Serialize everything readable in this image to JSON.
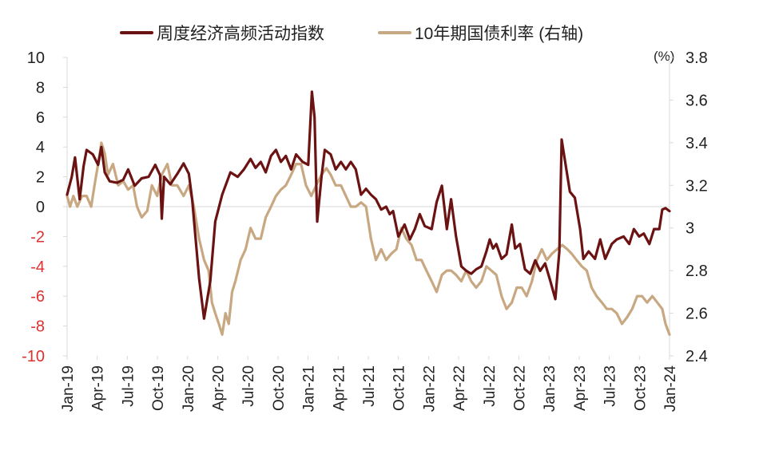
{
  "chart_data": {
    "type": "line",
    "legend": [
      {
        "label": "周度经济高频活动指数",
        "color": "#6b1212",
        "axis": "left"
      },
      {
        "label": "10年期国债利率 (右轴)",
        "color": "#c8a882",
        "axis": "right"
      }
    ],
    "legend_position": "top-center",
    "grid": false,
    "x_labels": [
      "Jan-19",
      "Apr-19",
      "Jul-19",
      "Oct-19",
      "Jan-20",
      "Apr-20",
      "Jul-20",
      "Oct-20",
      "Jan-21",
      "Apr-21",
      "Jul-21",
      "Oct-21",
      "Jan-22",
      "Apr-22",
      "Jul-22",
      "Oct-22",
      "Jan-23",
      "Apr-23",
      "Jul-23",
      "Oct-23",
      "Jan-24"
    ],
    "x_range": [
      "2019-01",
      "2024-01"
    ],
    "y_left": {
      "ylim": [
        -10,
        10
      ],
      "ticks": [
        "10",
        "8",
        "6",
        "4",
        "2",
        "0",
        "-2",
        "-4",
        "-6",
        "-8",
        "-10"
      ],
      "negative_label_color": "#e03030"
    },
    "y_right": {
      "ylim": [
        2.4,
        3.8
      ],
      "unit": "(%)",
      "ticks": [
        "3.8",
        "3.6",
        "3.4",
        "3.2",
        "3",
        "2.8",
        "2.6",
        "2.4"
      ]
    },
    "series": [
      {
        "name": "周度经济高频活动指数",
        "color": "#6b1212",
        "axis": "left",
        "points": [
          [
            "2019-01",
            0.8
          ],
          [
            "2019-01-15",
            2
          ],
          [
            "2019-01-25",
            3.3
          ],
          [
            "2019-02-08",
            0.5
          ],
          [
            "2019-02-20",
            2.7
          ],
          [
            "2019-03-01",
            3.8
          ],
          [
            "2019-03-20",
            3.5
          ],
          [
            "2019-04-05",
            2.8
          ],
          [
            "2019-04-15",
            4
          ],
          [
            "2019-04-25",
            2.3
          ],
          [
            "2019-05-10",
            1.7
          ],
          [
            "2019-06-01",
            1.6
          ],
          [
            "2019-06-20",
            1.8
          ],
          [
            "2019-07-05",
            2.5
          ],
          [
            "2019-07-25",
            1.4
          ],
          [
            "2019-08-15",
            1.9
          ],
          [
            "2019-09-05",
            2
          ],
          [
            "2019-09-25",
            2.8
          ],
          [
            "2019-10-10",
            2.1
          ],
          [
            "2019-10-15",
            -0.8
          ],
          [
            "2019-10-22",
            2
          ],
          [
            "2019-11-10",
            1.5
          ],
          [
            "2019-12-01",
            2.2
          ],
          [
            "2019-12-20",
            2.9
          ],
          [
            "2020-01-05",
            2.2
          ],
          [
            "2020-01-15",
            0.5
          ],
          [
            "2020-02-05",
            -4.8
          ],
          [
            "2020-02-20",
            -7.5
          ],
          [
            "2020-03-10",
            -5
          ],
          [
            "2020-03-25",
            -1
          ],
          [
            "2020-04-15",
            0.8
          ],
          [
            "2020-05-10",
            2.3
          ],
          [
            "2020-06-01",
            2
          ],
          [
            "2020-06-20",
            2.5
          ],
          [
            "2020-07-10",
            3.2
          ],
          [
            "2020-07-25",
            2.6
          ],
          [
            "2020-08-10",
            3
          ],
          [
            "2020-08-25",
            2.3
          ],
          [
            "2020-09-10",
            3.4
          ],
          [
            "2020-09-25",
            3.8
          ],
          [
            "2020-10-10",
            3
          ],
          [
            "2020-10-25",
            3.4
          ],
          [
            "2020-11-10",
            2.5
          ],
          [
            "2020-11-25",
            3.5
          ],
          [
            "2020-12-15",
            3
          ],
          [
            "2021-01-01",
            2.8
          ],
          [
            "2021-01-12",
            7.7
          ],
          [
            "2021-01-20",
            6
          ],
          [
            "2021-01-28",
            -1
          ],
          [
            "2021-02-10",
            2
          ],
          [
            "2021-02-20",
            3.8
          ],
          [
            "2021-03-10",
            3.5
          ],
          [
            "2021-03-25",
            2.5
          ],
          [
            "2021-04-10",
            3
          ],
          [
            "2021-04-25",
            2.5
          ],
          [
            "2021-05-10",
            3
          ],
          [
            "2021-05-25",
            2.5
          ],
          [
            "2021-06-10",
            0.8
          ],
          [
            "2021-06-25",
            1.2
          ],
          [
            "2021-07-10",
            0.8
          ],
          [
            "2021-07-25",
            0.5
          ],
          [
            "2021-08-10",
            -0.2
          ],
          [
            "2021-08-25",
            0
          ],
          [
            "2021-09-05",
            -0.5
          ],
          [
            "2021-09-15",
            -0.3
          ],
          [
            "2021-10-01",
            -2
          ],
          [
            "2021-10-20",
            -1.2
          ],
          [
            "2021-11-05",
            -2.2
          ],
          [
            "2021-11-20",
            -1.5
          ],
          [
            "2021-12-05",
            -0.5
          ],
          [
            "2021-12-20",
            -1.3
          ],
          [
            "2022-01-10",
            -1.5
          ],
          [
            "2022-01-25",
            0.3
          ],
          [
            "2022-02-10",
            1.4
          ],
          [
            "2022-02-25",
            -1.5
          ],
          [
            "2022-03-10",
            0.5
          ],
          [
            "2022-03-25",
            -2
          ],
          [
            "2022-04-10",
            -4
          ],
          [
            "2022-04-25",
            -4.3
          ],
          [
            "2022-05-10",
            -4.5
          ],
          [
            "2022-05-25",
            -4.2
          ],
          [
            "2022-06-10",
            -4
          ],
          [
            "2022-06-25",
            -3
          ],
          [
            "2022-07-05",
            -2.2
          ],
          [
            "2022-07-15",
            -2.8
          ],
          [
            "2022-07-25",
            -2.5
          ],
          [
            "2022-08-10",
            -3.5
          ],
          [
            "2022-08-25",
            -3.2
          ],
          [
            "2022-09-10",
            -1.2
          ],
          [
            "2022-09-20",
            -2.8
          ],
          [
            "2022-10-05",
            -2.5
          ],
          [
            "2022-10-20",
            -4.2
          ],
          [
            "2022-11-05",
            -4.5
          ],
          [
            "2022-11-20",
            -3.6
          ],
          [
            "2022-12-05",
            -4.3
          ],
          [
            "2022-12-20",
            -3.8
          ],
          [
            "2023-01-05",
            -5
          ],
          [
            "2023-01-20",
            -6.2
          ],
          [
            "2023-02-01",
            -3
          ],
          [
            "2023-02-08",
            4.5
          ],
          [
            "2023-02-15",
            3.5
          ],
          [
            "2023-03-05",
            1
          ],
          [
            "2023-03-20",
            0.6
          ],
          [
            "2023-04-05",
            -1.5
          ],
          [
            "2023-04-15",
            -3.5
          ],
          [
            "2023-05-01",
            -3
          ],
          [
            "2023-05-20",
            -3.5
          ],
          [
            "2023-06-05",
            -2.2
          ],
          [
            "2023-06-20",
            -3.5
          ],
          [
            "2023-07-10",
            -2.5
          ],
          [
            "2023-07-25",
            -2.2
          ],
          [
            "2023-08-15",
            -2
          ],
          [
            "2023-09-01",
            -2.5
          ],
          [
            "2023-09-15",
            -1.5
          ],
          [
            "2023-10-01",
            -2
          ],
          [
            "2023-10-15",
            -1.8
          ],
          [
            "2023-11-01",
            -2.5
          ],
          [
            "2023-11-15",
            -1.5
          ],
          [
            "2023-12-01",
            -1.5
          ],
          [
            "2023-12-10",
            -0.2
          ],
          [
            "2023-12-20",
            -0.1
          ],
          [
            "2024-01",
            -0.3
          ]
        ]
      },
      {
        "name": "10年期国债利率 (右轴)",
        "color": "#c8a882",
        "axis": "right",
        "points": [
          [
            "2019-01",
            3.15
          ],
          [
            "2019-01-10",
            3.1
          ],
          [
            "2019-01-20",
            3.15
          ],
          [
            "2019-02-01",
            3.1
          ],
          [
            "2019-02-15",
            3.15
          ],
          [
            "2019-03-01",
            3.15
          ],
          [
            "2019-03-15",
            3.1
          ],
          [
            "2019-03-25",
            3.2
          ],
          [
            "2019-04-05",
            3.3
          ],
          [
            "2019-04-15",
            3.4
          ],
          [
            "2019-04-25",
            3.35
          ],
          [
            "2019-05-05",
            3.25
          ],
          [
            "2019-05-20",
            3.3
          ],
          [
            "2019-06-05",
            3.2
          ],
          [
            "2019-06-20",
            3.22
          ],
          [
            "2019-07-05",
            3.18
          ],
          [
            "2019-07-20",
            3.2
          ],
          [
            "2019-08-01",
            3.1
          ],
          [
            "2019-08-15",
            3.05
          ],
          [
            "2019-09-01",
            3.08
          ],
          [
            "2019-09-15",
            3.2
          ],
          [
            "2019-10-01",
            3.15
          ],
          [
            "2019-10-15",
            3.25
          ],
          [
            "2019-11-01",
            3.3
          ],
          [
            "2019-11-15",
            3.2
          ],
          [
            "2019-12-01",
            3.2
          ],
          [
            "2019-12-20",
            3.15
          ],
          [
            "2020-01-05",
            3.2
          ],
          [
            "2020-01-20",
            3.1
          ],
          [
            "2020-02-05",
            2.95
          ],
          [
            "2020-02-20",
            2.85
          ],
          [
            "2020-03-05",
            2.8
          ],
          [
            "2020-03-15",
            2.65
          ],
          [
            "2020-03-25",
            2.6
          ],
          [
            "2020-04-05",
            2.55
          ],
          [
            "2020-04-15",
            2.5
          ],
          [
            "2020-04-25",
            2.6
          ],
          [
            "2020-05-05",
            2.55
          ],
          [
            "2020-05-15",
            2.7
          ],
          [
            "2020-05-25",
            2.75
          ],
          [
            "2020-06-10",
            2.85
          ],
          [
            "2020-06-25",
            2.9
          ],
          [
            "2020-07-10",
            3
          ],
          [
            "2020-07-25",
            2.95
          ],
          [
            "2020-08-10",
            2.95
          ],
          [
            "2020-08-25",
            3.05
          ],
          [
            "2020-09-10",
            3.1
          ],
          [
            "2020-09-25",
            3.15
          ],
          [
            "2020-10-10",
            3.18
          ],
          [
            "2020-10-25",
            3.2
          ],
          [
            "2020-11-10",
            3.25
          ],
          [
            "2020-11-25",
            3.3
          ],
          [
            "2020-12-10",
            3.3
          ],
          [
            "2020-12-25",
            3.2
          ],
          [
            "2021-01-10",
            3.15
          ],
          [
            "2021-01-25",
            3.2
          ],
          [
            "2021-02-10",
            3.25
          ],
          [
            "2021-02-25",
            3.28
          ],
          [
            "2021-03-10",
            3.25
          ],
          [
            "2021-03-25",
            3.2
          ],
          [
            "2021-04-10",
            3.2
          ],
          [
            "2021-04-25",
            3.15
          ],
          [
            "2021-05-10",
            3.1
          ],
          [
            "2021-05-25",
            3.1
          ],
          [
            "2021-06-10",
            3.12
          ],
          [
            "2021-06-25",
            3.1
          ],
          [
            "2021-07-10",
            2.95
          ],
          [
            "2021-07-25",
            2.85
          ],
          [
            "2021-08-10",
            2.9
          ],
          [
            "2021-08-25",
            2.85
          ],
          [
            "2021-09-10",
            2.88
          ],
          [
            "2021-09-25",
            2.9
          ],
          [
            "2021-10-10",
            3
          ],
          [
            "2021-10-25",
            2.95
          ],
          [
            "2021-11-10",
            2.92
          ],
          [
            "2021-11-25",
            2.85
          ],
          [
            "2021-12-10",
            2.85
          ],
          [
            "2021-12-25",
            2.8
          ],
          [
            "2022-01-10",
            2.75
          ],
          [
            "2022-01-25",
            2.7
          ],
          [
            "2022-02-10",
            2.78
          ],
          [
            "2022-02-25",
            2.8
          ],
          [
            "2022-03-10",
            2.8
          ],
          [
            "2022-03-25",
            2.78
          ],
          [
            "2022-04-10",
            2.75
          ],
          [
            "2022-04-25",
            2.8
          ],
          [
            "2022-05-10",
            2.75
          ],
          [
            "2022-05-25",
            2.72
          ],
          [
            "2022-06-10",
            2.75
          ],
          [
            "2022-06-25",
            2.82
          ],
          [
            "2022-07-10",
            2.8
          ],
          [
            "2022-07-25",
            2.78
          ],
          [
            "2022-08-10",
            2.68
          ],
          [
            "2022-08-25",
            2.62
          ],
          [
            "2022-09-10",
            2.65
          ],
          [
            "2022-09-25",
            2.72
          ],
          [
            "2022-10-10",
            2.72
          ],
          [
            "2022-10-25",
            2.68
          ],
          [
            "2022-11-10",
            2.75
          ],
          [
            "2022-11-25",
            2.85
          ],
          [
            "2022-12-10",
            2.9
          ],
          [
            "2022-12-25",
            2.85
          ],
          [
            "2023-01-10",
            2.88
          ],
          [
            "2023-01-25",
            2.9
          ],
          [
            "2023-02-10",
            2.92
          ],
          [
            "2023-02-25",
            2.9
          ],
          [
            "2023-03-10",
            2.88
          ],
          [
            "2023-03-25",
            2.85
          ],
          [
            "2023-04-10",
            2.82
          ],
          [
            "2023-04-25",
            2.8
          ],
          [
            "2023-05-10",
            2.72
          ],
          [
            "2023-05-25",
            2.68
          ],
          [
            "2023-06-10",
            2.65
          ],
          [
            "2023-06-25",
            2.62
          ],
          [
            "2023-07-10",
            2.62
          ],
          [
            "2023-07-25",
            2.6
          ],
          [
            "2023-08-10",
            2.55
          ],
          [
            "2023-08-25",
            2.58
          ],
          [
            "2023-09-10",
            2.62
          ],
          [
            "2023-09-25",
            2.68
          ],
          [
            "2023-10-10",
            2.68
          ],
          [
            "2023-10-25",
            2.65
          ],
          [
            "2023-11-10",
            2.68
          ],
          [
            "2023-11-25",
            2.65
          ],
          [
            "2023-12-10",
            2.62
          ],
          [
            "2023-12-20",
            2.55
          ],
          [
            "2024-01",
            2.5
          ]
        ]
      }
    ]
  }
}
